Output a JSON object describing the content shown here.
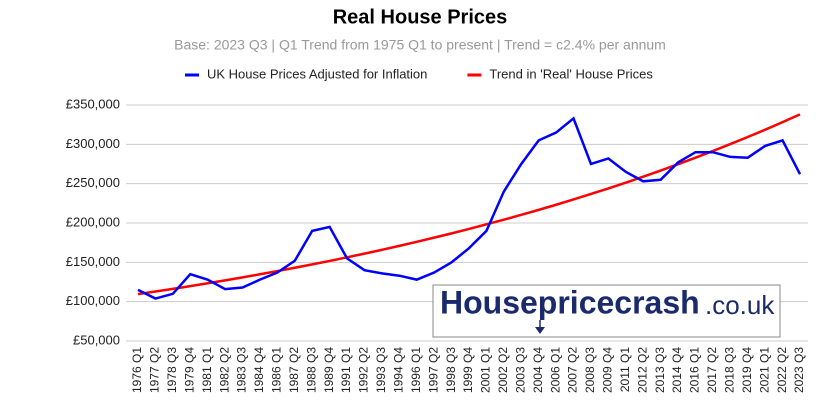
{
  "chart_data": {
    "type": "line",
    "title": "Real House Prices",
    "subtitle": "Base: 2023 Q3 | Q1 Trend from 1975 Q1 to present | Trend = c2.4% per annum",
    "categories": [
      "1976 Q1",
      "1977 Q2",
      "1978 Q3",
      "1979 Q4",
      "1981 Q1",
      "1982 Q2",
      "1983 Q3",
      "1984 Q4",
      "1986 Q1",
      "1987 Q2",
      "1988 Q3",
      "1989 Q4",
      "1991 Q1",
      "1992 Q2",
      "1993 Q3",
      "1994 Q4",
      "1996 Q1",
      "1997 Q2",
      "1998 Q3",
      "1999 Q4",
      "2001 Q1",
      "2002 Q2",
      "2003 Q3",
      "2004 Q4",
      "2006 Q1",
      "2007 Q2",
      "2008 Q3",
      "2009 Q4",
      "2011 Q1",
      "2012 Q2",
      "2013 Q3",
      "2014 Q4",
      "2016 Q1",
      "2017 Q2",
      "2018 Q3",
      "2019 Q4",
      "2021 Q1",
      "2022 Q2",
      "2023 Q3"
    ],
    "series": [
      {
        "name": "UK House Prices Adjusted for Inflation",
        "color": "#0000ff",
        "values": [
          115000,
          104000,
          110000,
          135000,
          128000,
          116000,
          118000,
          128000,
          137000,
          152000,
          190000,
          195000,
          155000,
          140000,
          136000,
          133000,
          128000,
          137000,
          150000,
          168000,
          190000,
          240000,
          275000,
          305000,
          315000,
          333000,
          275000,
          282000,
          265000,
          253000,
          255000,
          277000,
          290000,
          290000,
          284000,
          283000,
          298000,
          305000,
          262000
        ]
      },
      {
        "name": "Trend in 'Real' House Prices",
        "color": "#ff0000",
        "values": [
          109600,
          112900,
          116300,
          119800,
          123400,
          127100,
          130900,
          134800,
          138900,
          143100,
          147400,
          151800,
          156400,
          161100,
          165900,
          170900,
          176100,
          181400,
          186800,
          192500,
          198300,
          204200,
          210400,
          216700,
          223200,
          229900,
          236900,
          244000,
          251300,
          258900,
          266700,
          274700,
          283000,
          291500,
          300300,
          309300,
          318600,
          328200,
          338100
        ]
      }
    ],
    "ylim": [
      50000,
      350000
    ],
    "yticks": [
      {
        "value": 50000,
        "label": "£50,000"
      },
      {
        "value": 100000,
        "label": "£100,000"
      },
      {
        "value": 150000,
        "label": "£150,000"
      },
      {
        "value": 200000,
        "label": "£200,000"
      },
      {
        "value": 250000,
        "label": "£250,000"
      },
      {
        "value": 300000,
        "label": "£300,000"
      },
      {
        "value": 350000,
        "label": "£350,000"
      }
    ],
    "grid": true,
    "legend": "top",
    "watermark": {
      "main": "Housepricecrash",
      "domain": ".co.uk"
    }
  }
}
